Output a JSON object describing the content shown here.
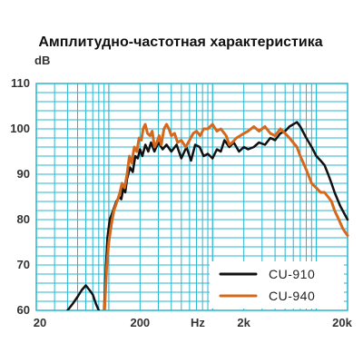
{
  "chart_data": {
    "type": "line",
    "title": "Амплитудно-частотная характеристика",
    "ylabel": "dB",
    "xlabel": "Hz",
    "x_scale": "log",
    "xlim": [
      20,
      20000
    ],
    "ylim": [
      60,
      110
    ],
    "grid": true,
    "legend_position": "bottom-right",
    "x_ticks": [
      {
        "value": 20,
        "label": "20"
      },
      {
        "value": 200,
        "label": "200"
      },
      {
        "value": 2000,
        "label": "2k"
      },
      {
        "value": 20000,
        "label": "20k"
      }
    ],
    "y_ticks": [
      {
        "value": 110,
        "label": "110"
      },
      {
        "value": 100,
        "label": "100"
      },
      {
        "value": 90,
        "label": "90"
      },
      {
        "value": 80,
        "label": "80"
      },
      {
        "value": 70,
        "label": "70"
      },
      {
        "value": 60,
        "label": "60"
      }
    ],
    "grid_color": "#29b6cf",
    "series": [
      {
        "name": "CU-910",
        "color": "#111111",
        "points": [
          [
            40,
            60
          ],
          [
            45,
            61.5
          ],
          [
            50,
            63
          ],
          [
            55,
            64.5
          ],
          [
            60,
            65.5
          ],
          [
            65,
            64.5
          ],
          [
            70,
            63.5
          ],
          [
            75,
            61.5
          ],
          [
            80,
            60
          ],
          [
            89,
            58
          ],
          [
            90,
            60
          ],
          [
            93,
            68
          ],
          [
            97,
            76
          ],
          [
            102,
            80
          ],
          [
            110,
            82
          ],
          [
            118,
            84
          ],
          [
            126,
            85
          ],
          [
            132,
            84.5
          ],
          [
            138,
            87
          ],
          [
            144,
            86
          ],
          [
            150,
            89
          ],
          [
            160,
            91.5
          ],
          [
            170,
            90.5
          ],
          [
            180,
            94
          ],
          [
            190,
            93.5
          ],
          [
            200,
            95.5
          ],
          [
            210,
            94
          ],
          [
            225,
            96.5
          ],
          [
            240,
            95
          ],
          [
            255,
            97
          ],
          [
            275,
            95
          ],
          [
            300,
            97
          ],
          [
            330,
            95.5
          ],
          [
            360,
            96.5
          ],
          [
            400,
            95
          ],
          [
            450,
            96.5
          ],
          [
            500,
            93.5
          ],
          [
            560,
            96
          ],
          [
            620,
            93
          ],
          [
            680,
            96.5
          ],
          [
            750,
            96
          ],
          [
            820,
            94
          ],
          [
            900,
            94.5
          ],
          [
            1000,
            93.5
          ],
          [
            1100,
            95.5
          ],
          [
            1200,
            95
          ],
          [
            1300,
            97.5
          ],
          [
            1450,
            96
          ],
          [
            1600,
            97
          ],
          [
            1800,
            95
          ],
          [
            2000,
            96
          ],
          [
            2200,
            95.5
          ],
          [
            2500,
            96
          ],
          [
            2800,
            97
          ],
          [
            3200,
            96.5
          ],
          [
            3600,
            98
          ],
          [
            4000,
            97.5
          ],
          [
            4500,
            99
          ],
          [
            5000,
            99.5
          ],
          [
            5500,
            100.5
          ],
          [
            6000,
            101
          ],
          [
            6500,
            101.5
          ],
          [
            7000,
            100.5
          ],
          [
            8000,
            98
          ],
          [
            9000,
            96
          ],
          [
            10000,
            94
          ],
          [
            11000,
            93
          ],
          [
            12000,
            92
          ],
          [
            13000,
            90
          ],
          [
            14000,
            88
          ],
          [
            15000,
            86
          ],
          [
            17000,
            83
          ],
          [
            20000,
            80
          ]
        ]
      },
      {
        "name": "CU-940",
        "color": "#d4691e",
        "points": [
          [
            88,
            58
          ],
          [
            91,
            60
          ],
          [
            95,
            69
          ],
          [
            100,
            75
          ],
          [
            106,
            79
          ],
          [
            112,
            82
          ],
          [
            120,
            84
          ],
          [
            128,
            86
          ],
          [
            134,
            88
          ],
          [
            142,
            87
          ],
          [
            150,
            90
          ],
          [
            158,
            94
          ],
          [
            166,
            92.5
          ],
          [
            176,
            96
          ],
          [
            186,
            95
          ],
          [
            196,
            98
          ],
          [
            206,
            97.5
          ],
          [
            214,
            100
          ],
          [
            224,
            101
          ],
          [
            236,
            99
          ],
          [
            250,
            98.5
          ],
          [
            262,
            99.5
          ],
          [
            276,
            96
          ],
          [
            290,
            97
          ],
          [
            306,
            98.5
          ],
          [
            320,
            96.5
          ],
          [
            340,
            100
          ],
          [
            360,
            101
          ],
          [
            380,
            100
          ],
          [
            400,
            98.5
          ],
          [
            430,
            99
          ],
          [
            460,
            97
          ],
          [
            500,
            97.5
          ],
          [
            550,
            96
          ],
          [
            600,
            97.5
          ],
          [
            650,
            99
          ],
          [
            700,
            99.5
          ],
          [
            760,
            98.5
          ],
          [
            820,
            100
          ],
          [
            900,
            100
          ],
          [
            1000,
            101
          ],
          [
            1100,
            99.5
          ],
          [
            1200,
            100
          ],
          [
            1350,
            98.5
          ],
          [
            1450,
            96.5
          ],
          [
            1550,
            97
          ],
          [
            1700,
            98
          ],
          [
            1850,
            98.5
          ],
          [
            2000,
            99
          ],
          [
            2200,
            99.5
          ],
          [
            2500,
            100.5
          ],
          [
            2800,
            99.5
          ],
          [
            3200,
            100.5
          ],
          [
            3600,
            99
          ],
          [
            4000,
            98.5
          ],
          [
            4500,
            100
          ],
          [
            5000,
            99
          ],
          [
            5500,
            98
          ],
          [
            6500,
            96
          ],
          [
            7000,
            94
          ],
          [
            8000,
            91
          ],
          [
            9000,
            88
          ],
          [
            10000,
            87
          ],
          [
            11000,
            86
          ],
          [
            12000,
            86
          ],
          [
            13000,
            85
          ],
          [
            14000,
            84
          ],
          [
            15000,
            82
          ],
          [
            16500,
            80
          ],
          [
            18000,
            78
          ],
          [
            20000,
            76.5
          ]
        ]
      }
    ]
  }
}
